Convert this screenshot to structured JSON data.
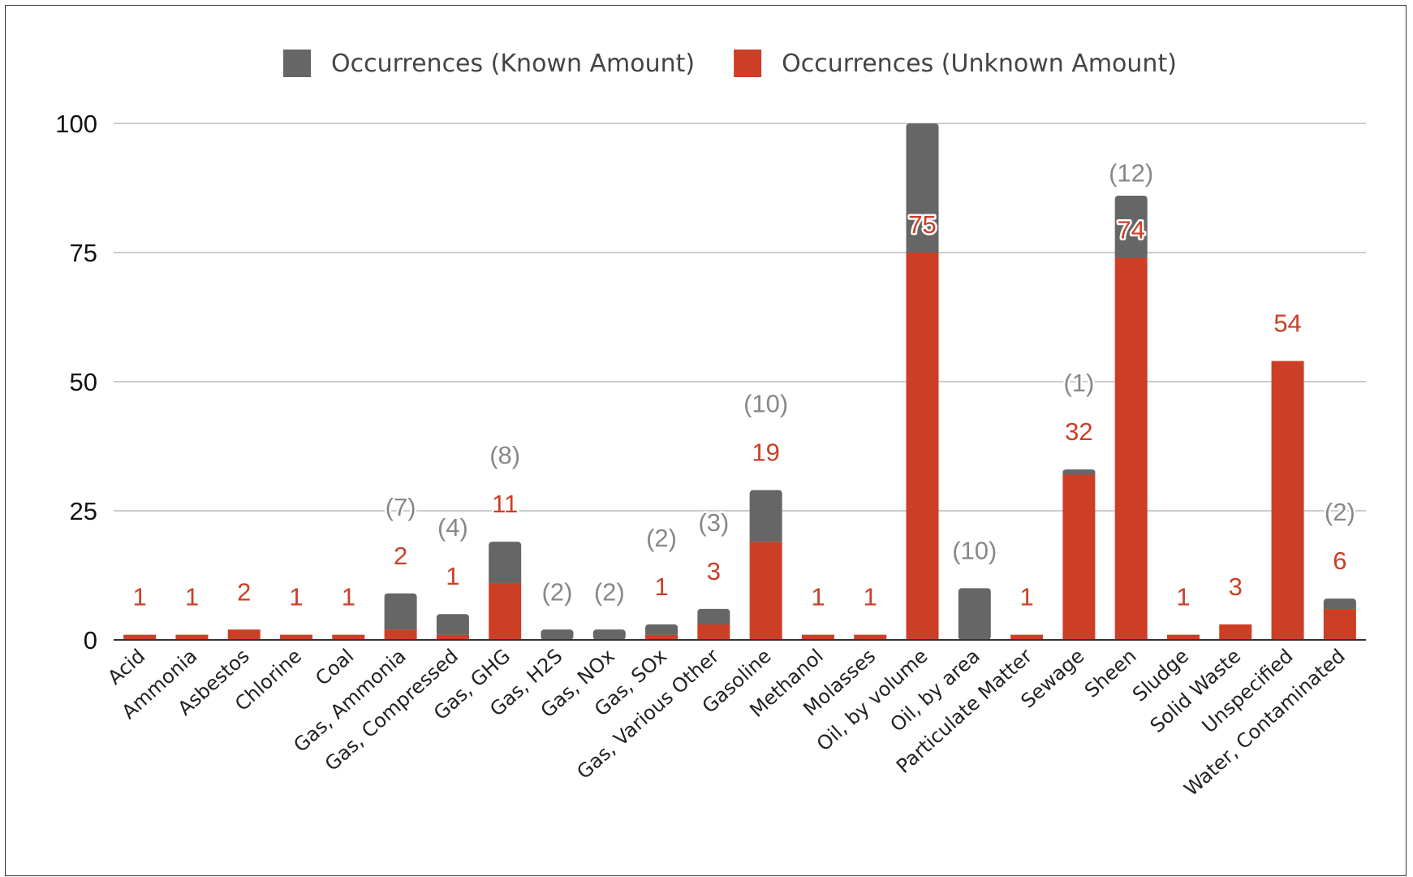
{
  "chart_data": {
    "type": "bar",
    "stacked": true,
    "categories": [
      "Acid",
      "Ammonia",
      "Asbestos",
      "Chlorine",
      "Coal",
      "Gas, Ammonia",
      "Gas, Compressed",
      "Gas, GHG",
      "Gas, H2S",
      "Gas, NOx",
      "Gas, SOx",
      "Gas, Various Other",
      "Gasoline",
      "Methanol",
      "Molasses",
      "Oil, by volume",
      "Oil, by area",
      "Particulate Matter",
      "Sewage",
      "Sheen",
      "Sludge",
      "Solid Waste",
      "Unspecified",
      "Water, Contaminated"
    ],
    "series": [
      {
        "name": "Occurrences (Unknown Amount)",
        "color": "#cc3f26",
        "values": [
          1,
          1,
          2,
          1,
          1,
          2,
          1,
          11,
          0,
          0,
          1,
          3,
          19,
          1,
          1,
          75,
          0,
          1,
          32,
          74,
          1,
          3,
          54,
          6
        ],
        "labels": [
          "1",
          "1",
          "2",
          "1",
          "1",
          "2",
          "1",
          "11",
          "",
          "",
          "1",
          "3",
          "19",
          "1",
          "1",
          "75",
          "",
          "1",
          "32",
          "74",
          "1",
          "3",
          "54",
          "6"
        ]
      },
      {
        "name": "Occurrences (Known Amount)",
        "color": "#666666",
        "values": [
          0,
          0,
          0,
          0,
          0,
          7,
          4,
          8,
          2,
          2,
          2,
          3,
          10,
          0,
          0,
          25,
          10,
          0,
          1,
          12,
          0,
          0,
          0,
          2
        ],
        "labels": [
          "",
          "",
          "",
          "",
          "",
          "(7)",
          "(4)",
          "(8)",
          "(2)",
          "(2)",
          "(2)",
          "(3)",
          "(10)",
          "",
          "",
          "",
          "(10)",
          "",
          "(1)",
          "(12)",
          "",
          "",
          "",
          "(2)"
        ]
      }
    ],
    "legend_order": [
      1,
      0
    ],
    "yticks": [
      0,
      25,
      50,
      75,
      100
    ],
    "ylim": [
      0,
      100
    ],
    "grid": true,
    "legend_position": "top-center",
    "xlabel": "",
    "ylabel": "",
    "title": ""
  }
}
